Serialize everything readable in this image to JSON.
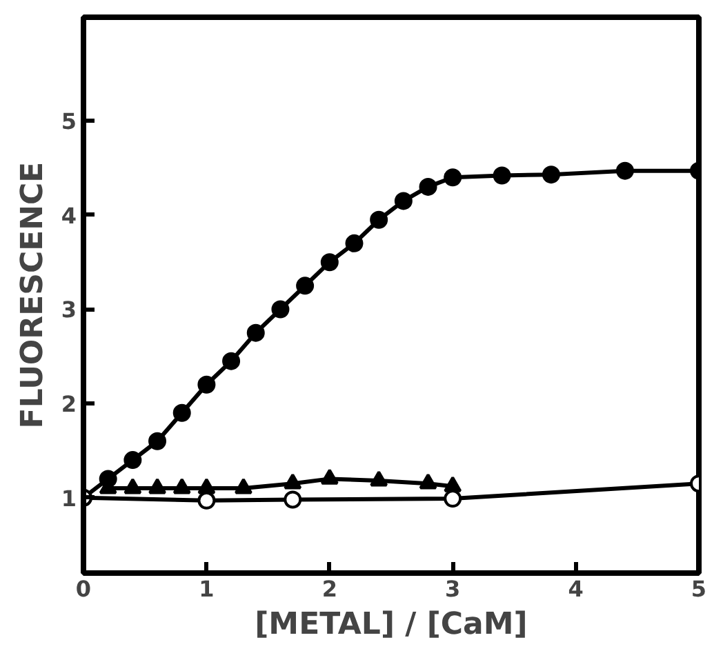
{
  "chart_data": {
    "type": "line",
    "xlabel": "[METAL] / [CaM]",
    "ylabel": "FLUORESCENCE",
    "xlim": [
      0,
      5
    ],
    "ylim": [
      0.2,
      6.1
    ],
    "xticks": [
      0,
      1,
      2,
      3,
      4,
      5
    ],
    "yticks": [
      1,
      2,
      3,
      4,
      5
    ],
    "grid": false,
    "series": [
      {
        "color": "#000000",
        "marker": "circle",
        "x": [
          0,
          0.2,
          0.4,
          0.6,
          0.8,
          1.0,
          1.2,
          1.4,
          1.6,
          1.8,
          2.0,
          2.2,
          2.4,
          2.6,
          2.8,
          3.0,
          3.4,
          3.8,
          4.4,
          5.0
        ],
        "values": [
          1.0,
          1.2,
          1.4,
          1.6,
          1.9,
          2.2,
          2.45,
          2.75,
          3.0,
          3.25,
          3.5,
          3.7,
          3.95,
          4.15,
          4.3,
          4.4,
          4.42,
          4.43,
          4.47,
          4.47
        ]
      },
      {
        "color": "#000000",
        "marker": "triangle",
        "x": [
          0.2,
          0.4,
          0.6,
          0.8,
          1.0,
          1.3,
          1.7,
          2.0,
          2.4,
          2.8,
          3.0
        ],
        "values": [
          1.1,
          1.1,
          1.1,
          1.1,
          1.1,
          1.1,
          1.15,
          1.2,
          1.18,
          1.15,
          1.12
        ]
      },
      {
        "color": "#000000",
        "colors": [
          "#ffffff",
          "#ffffff",
          "#ffffff",
          "#ffffff",
          "#ffffff"
        ],
        "marker": "circle",
        "x": [
          0,
          1.0,
          1.7,
          3.0,
          5.0
        ],
        "values": [
          1.0,
          0.97,
          0.98,
          0.99,
          1.15
        ]
      }
    ]
  }
}
